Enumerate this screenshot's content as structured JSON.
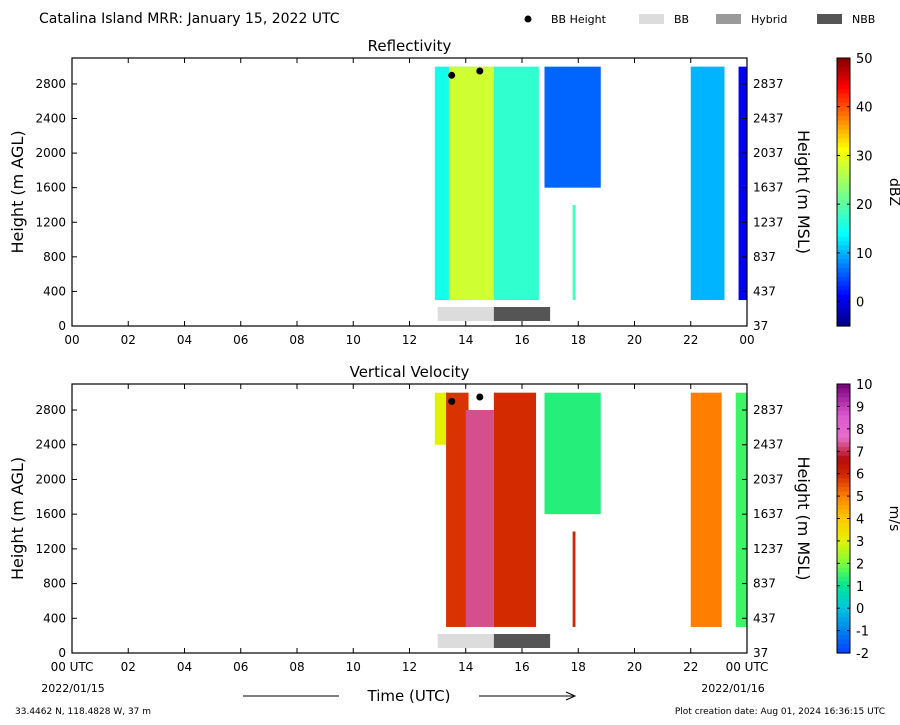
{
  "title": "Catalina Island MRR:  January 15, 2022 UTC",
  "legend": [
    {
      "label": "BB Height",
      "kind": "dot",
      "color": "#000000"
    },
    {
      "label": "BB",
      "kind": "box",
      "color": "#dcdcdc"
    },
    {
      "label": "Hybrid",
      "kind": "box",
      "color": "#9a9a9a"
    },
    {
      "label": "NBB",
      "kind": "box",
      "color": "#555555"
    }
  ],
  "footer": {
    "location": "33.4462 N, 118.4828 W, 37 m",
    "creation": "Plot creation date: Aug 01, 2024 16:36:15 UTC",
    "xlabel": "Time (UTC)",
    "start_date": "2022/01/15",
    "end_date": "2022/01/16"
  },
  "chart_data": [
    {
      "type": "heatmap",
      "title": "Reflectivity",
      "ylabel": "Height (m AGL)",
      "ylabel_right": "Height (m MSL)",
      "colorbar_label": "dBZ",
      "colorbar_ticks": [
        "50",
        "40",
        "30",
        "20",
        "10",
        "0"
      ],
      "colorbar_range": [
        -5,
        50
      ],
      "x_ticks": [
        "00",
        "02",
        "04",
        "06",
        "08",
        "10",
        "12",
        "14",
        "16",
        "18",
        "20",
        "22",
        "00"
      ],
      "xlim": [
        0,
        24
      ],
      "y_ticks": [
        "0",
        "400",
        "800",
        "1200",
        "1600",
        "2000",
        "2400",
        "2800"
      ],
      "y_ticks_right": [
        "37",
        "437",
        "837",
        "1237",
        "1637",
        "2037",
        "2437",
        "2837"
      ],
      "ylim": [
        0,
        3100
      ],
      "bb_height": [
        {
          "hour": 13.5,
          "height": 2900
        },
        {
          "hour": 14.5,
          "height": 2950
        }
      ],
      "bright_band": [
        {
          "class": "BB",
          "start": 13.0,
          "end": 15.0
        },
        {
          "class": "NBB",
          "start": 15.0,
          "end": 17.0
        }
      ],
      "echo_regions": [
        {
          "start": 12.9,
          "end": 14.2,
          "bottom": 300,
          "top": 3000,
          "value": 15
        },
        {
          "start": 13.4,
          "end": 15.0,
          "bottom": 300,
          "top": 3000,
          "value": 28
        },
        {
          "start": 15.0,
          "end": 16.6,
          "bottom": 300,
          "top": 3000,
          "value": 17
        },
        {
          "start": 16.8,
          "end": 18.8,
          "bottom": 1600,
          "top": 3000,
          "value": 6
        },
        {
          "start": 17.8,
          "end": 17.9,
          "bottom": 300,
          "top": 1400,
          "value": 18
        },
        {
          "start": 22.0,
          "end": 23.2,
          "bottom": 300,
          "top": 3000,
          "value": 10
        },
        {
          "start": 23.7,
          "end": 24.0,
          "bottom": 300,
          "top": 3000,
          "value": 1
        }
      ]
    },
    {
      "type": "heatmap",
      "title": "Vertical Velocity",
      "ylabel": "Height (m AGL)",
      "ylabel_right": "Height (m MSL)",
      "colorbar_label": "m/s",
      "colorbar_ticks": [
        "10",
        "9",
        "8",
        "7",
        "6",
        "5",
        "4",
        "3",
        "2",
        "1",
        "0",
        "-1",
        "-2"
      ],
      "colorbar_range": [
        -2,
        10
      ],
      "x_ticks": [
        "00 UTC",
        "02",
        "04",
        "06",
        "08",
        "10",
        "12",
        "14",
        "16",
        "18",
        "20",
        "22",
        "00 UTC"
      ],
      "xlim": [
        0,
        24
      ],
      "y_ticks": [
        "0",
        "400",
        "800",
        "1200",
        "1600",
        "2000",
        "2400",
        "2800"
      ],
      "y_ticks_right": [
        "37",
        "437",
        "837",
        "1237",
        "1637",
        "2037",
        "2437",
        "2837"
      ],
      "ylim": [
        0,
        3100
      ],
      "bb_height": [
        {
          "hour": 13.5,
          "height": 2900
        },
        {
          "hour": 14.5,
          "height": 2950
        }
      ],
      "bright_band": [
        {
          "class": "BB",
          "start": 13.0,
          "end": 15.0
        },
        {
          "class": "NBB",
          "start": 15.0,
          "end": 17.0
        }
      ],
      "echo_regions": [
        {
          "start": 12.9,
          "end": 13.4,
          "bottom": 2400,
          "top": 3000,
          "value": 3
        },
        {
          "start": 13.3,
          "end": 14.1,
          "bottom": 300,
          "top": 3000,
          "value": 5.8
        },
        {
          "start": 14.0,
          "end": 15.0,
          "bottom": 300,
          "top": 2800,
          "value": 7.3
        },
        {
          "start": 15.0,
          "end": 16.5,
          "bottom": 300,
          "top": 3000,
          "value": 5.9
        },
        {
          "start": 16.8,
          "end": 18.8,
          "bottom": 1600,
          "top": 3000,
          "value": 1.3
        },
        {
          "start": 17.8,
          "end": 17.9,
          "bottom": 300,
          "top": 1400,
          "value": 6
        },
        {
          "start": 22.0,
          "end": 23.1,
          "bottom": 300,
          "top": 3000,
          "value": 5
        },
        {
          "start": 23.6,
          "end": 24.0,
          "bottom": 300,
          "top": 3000,
          "value": 1.5
        }
      ]
    }
  ]
}
